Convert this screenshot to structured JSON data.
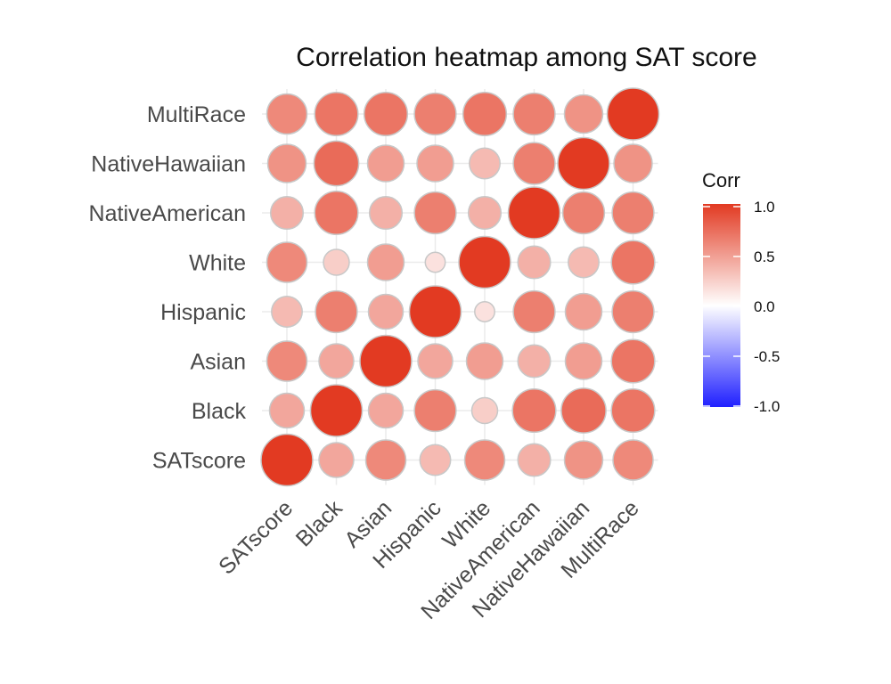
{
  "chart_data": {
    "type": "heatmap",
    "title": "Correlation heatmap among SAT score",
    "variables": [
      "SATscore",
      "Black",
      "Asian",
      "Hispanic",
      "White",
      "NativeAmerican",
      "NativeHawaiian",
      "MultiRace"
    ],
    "matrix": [
      [
        1.0,
        0.45,
        0.6,
        0.35,
        0.6,
        0.4,
        0.55,
        0.6
      ],
      [
        0.45,
        1.0,
        0.45,
        0.65,
        0.25,
        0.7,
        0.75,
        0.7
      ],
      [
        0.6,
        0.45,
        1.0,
        0.45,
        0.5,
        0.4,
        0.5,
        0.7
      ],
      [
        0.35,
        0.65,
        0.45,
        1.0,
        0.15,
        0.65,
        0.5,
        0.65
      ],
      [
        0.6,
        0.25,
        0.5,
        0.15,
        1.0,
        0.4,
        0.35,
        0.7
      ],
      [
        0.4,
        0.7,
        0.4,
        0.65,
        0.4,
        1.0,
        0.65,
        0.65
      ],
      [
        0.55,
        0.75,
        0.5,
        0.5,
        0.35,
        0.65,
        1.0,
        0.55
      ],
      [
        0.6,
        0.7,
        0.7,
        0.65,
        0.7,
        0.65,
        0.55,
        1.0
      ]
    ],
    "legend": {
      "title": "Corr",
      "ticks": [
        "1.0",
        "0.5",
        "0.0",
        "-0.5",
        "-1.0"
      ],
      "range": [
        -1,
        1
      ],
      "placement": "right"
    },
    "colors": {
      "low": "#2020ff",
      "mid": "#ffffff",
      "high": "#e23a22",
      "grid": "#ebebeb",
      "circle_stroke": "#c8c8c8"
    },
    "grid": true
  }
}
